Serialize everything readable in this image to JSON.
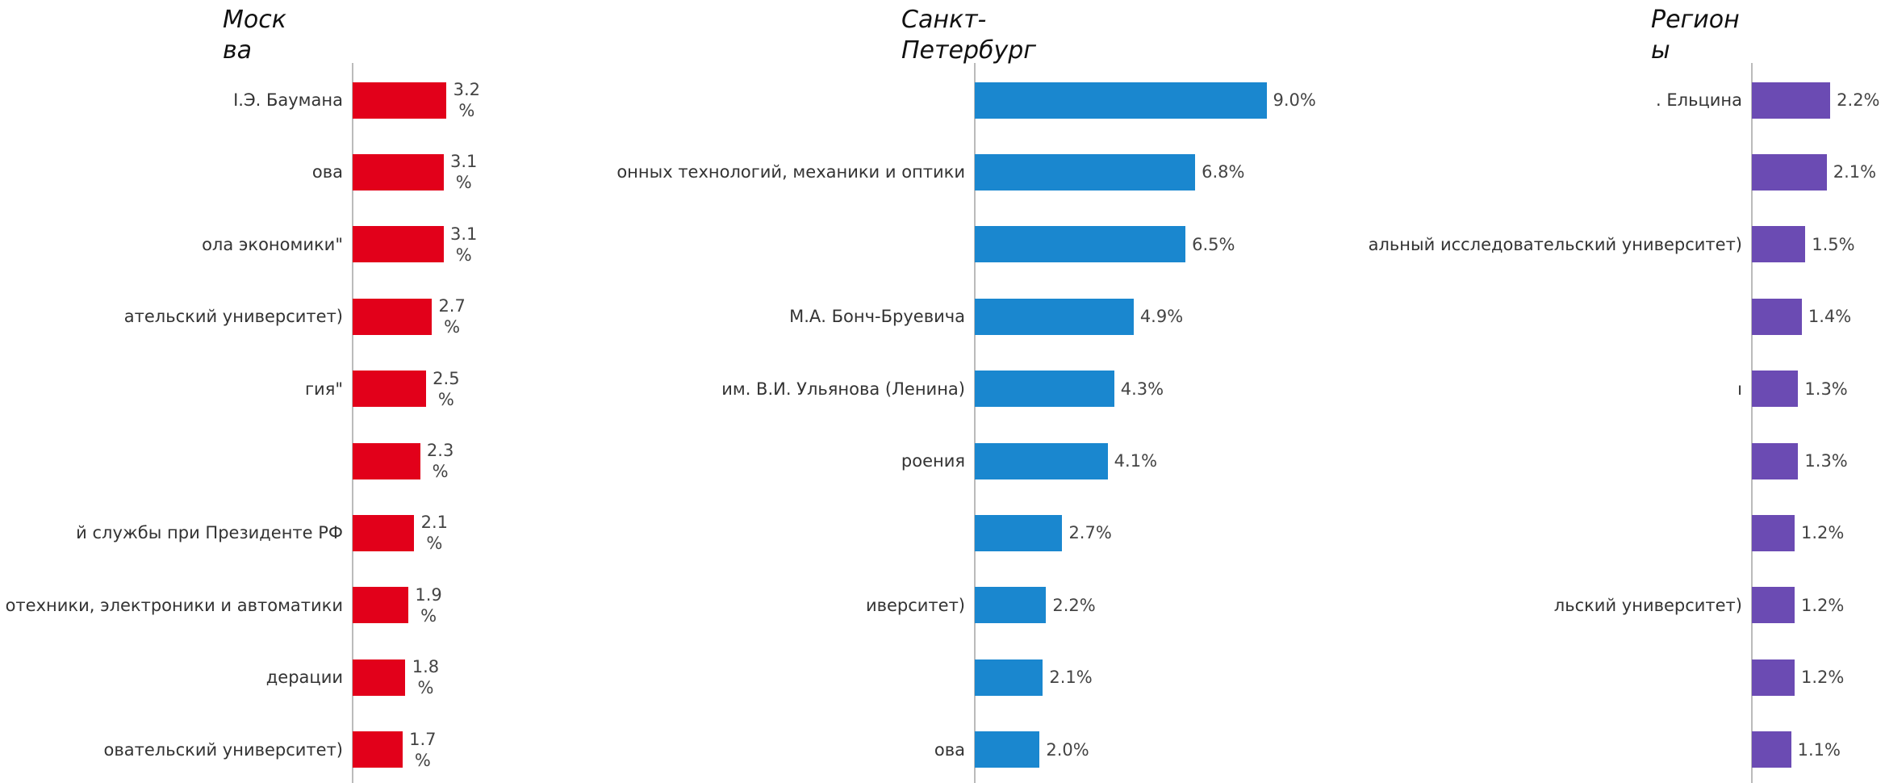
{
  "chart_data": [
    {
      "type": "bar",
      "orientation": "horizontal",
      "title": "Москва",
      "color": "#e2001a",
      "xlim": [
        0,
        8.5
      ],
      "categories": [
        "І.Э. Баумана",
        "ова",
        "ола экономики\"",
        "ательский университет)",
        "гия\"",
        null,
        "й службы при Президенте РФ",
        "отехники, электроники и автоматики",
        "дерации",
        "овательский университет)"
      ],
      "values": [
        3.2,
        3.1,
        3.1,
        2.7,
        2.5,
        2.3,
        2.1,
        1.9,
        1.8,
        1.7
      ],
      "value_labels": [
        "3.2 %",
        "3.1 %",
        "3.1 %",
        "2.7 %",
        "2.5 %",
        "2.3 %",
        "2.1 %",
        "1.9 %",
        "1.8 %",
        "1.7 %"
      ]
    },
    {
      "type": "bar",
      "orientation": "horizontal",
      "title": "Санкт-Петербург",
      "color": "#1a87cf",
      "xlim": [
        0,
        12
      ],
      "categories": [
        null,
        "онных технологий, механики и оптики",
        null,
        "М.А. Бонч-Бруевича",
        "им. В.И. Ульянова (Ленина)",
        "роения",
        null,
        "иверситет)",
        null,
        "ова"
      ],
      "values": [
        9.0,
        6.8,
        6.5,
        4.9,
        4.3,
        4.1,
        2.7,
        2.2,
        2.1,
        2.0
      ],
      "value_labels": [
        "9.0%",
        "6.8%",
        "6.5%",
        "4.9%",
        "4.3%",
        "4.1%",
        "2.7%",
        "2.2%",
        "2.1%",
        "2.0%"
      ]
    },
    {
      "type": "bar",
      "orientation": "horizontal",
      "title": "Регионы",
      "color": "#6b4bb3",
      "xlim": [
        0,
        3.6
      ],
      "categories": [
        ". Ельцина",
        null,
        "альный исследовательский университет)",
        null,
        "ı",
        null,
        null,
        "льский университет)",
        null,
        null
      ],
      "values": [
        2.2,
        2.1,
        1.5,
        1.4,
        1.3,
        1.3,
        1.2,
        1.2,
        1.2,
        1.1
      ],
      "value_labels": [
        "2.2%",
        "2.1%",
        "1.5%",
        "1.4%",
        "1.3%",
        "1.3%",
        "1.2%",
        "1.2%",
        "1.2%",
        "1.1%"
      ]
    }
  ]
}
